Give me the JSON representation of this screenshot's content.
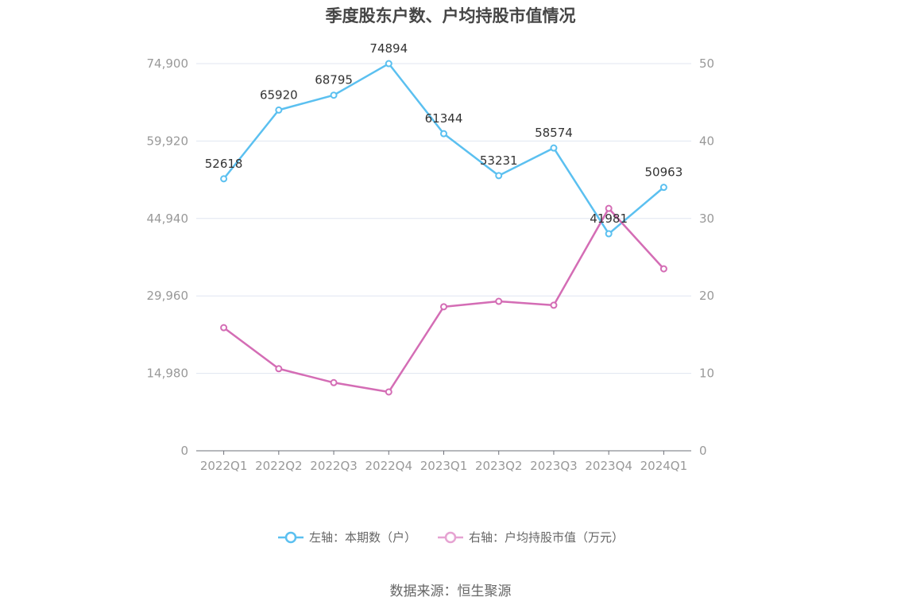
{
  "chart_data": {
    "type": "line",
    "title": "季度股东户数、户均持股市值情况",
    "categories": [
      "2022Q1",
      "2022Q2",
      "2022Q3",
      "2022Q4",
      "2023Q1",
      "2023Q2",
      "2023Q3",
      "2023Q4",
      "2024Q1"
    ],
    "series": [
      {
        "name": "左轴：本期数（户）",
        "axis": "left",
        "color": "#5bc0f0",
        "values": [
          52618,
          65920,
          68795,
          74894,
          61344,
          53231,
          58574,
          41981,
          50963
        ],
        "labels": [
          "52618",
          "65920",
          "68795",
          "74894",
          "61344",
          "53231",
          "58574",
          "41981",
          "50963"
        ]
      },
      {
        "name": "右轴：户均持股市值（万元）",
        "axis": "right",
        "color": "#d46db5",
        "legend_color": "#e6a3d2",
        "values": [
          15.9,
          10.6,
          8.8,
          7.6,
          18.6,
          19.3,
          18.8,
          31.3,
          23.5
        ]
      }
    ],
    "y_left": {
      "min": 0,
      "max": 74900,
      "ticks": [
        "0",
        "14,980",
        "29,960",
        "44,940",
        "59,920",
        "74,900"
      ]
    },
    "y_right": {
      "min": 0,
      "max": 50,
      "ticks": [
        "0",
        "10",
        "20",
        "30",
        "40",
        "50"
      ]
    },
    "grid": true,
    "legend_position": "bottom"
  },
  "source": "数据来源：恒生聚源"
}
